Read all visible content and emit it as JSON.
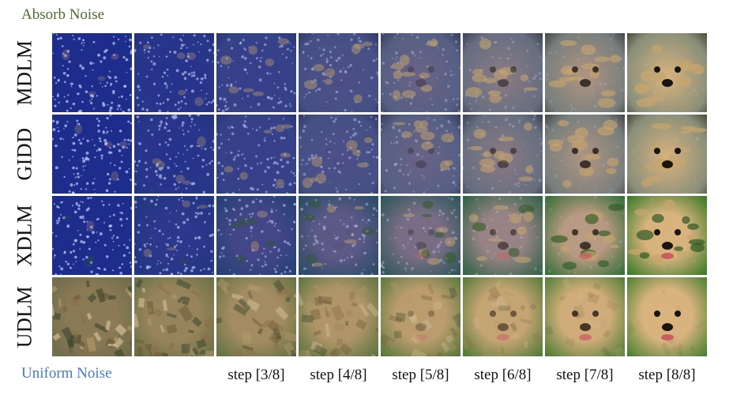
{
  "top_label": "Absorb Noise",
  "bottom_label": "Uniform Noise",
  "rows": [
    {
      "label": "MDLM",
      "kind": "absorb"
    },
    {
      "label": "GIDD",
      "kind": "absorb"
    },
    {
      "label": "XDLM",
      "kind": "mixed"
    },
    {
      "label": "UDLM",
      "kind": "uniform"
    }
  ],
  "step_labels": [
    "",
    "",
    "step [3/8]",
    "step [4/8]",
    "step [5/8]",
    "step [6/8]",
    "step [7/8]",
    "step [8/8]"
  ],
  "colors": {
    "absorb_mask": "#1e2c8c",
    "dog_fur": "#d9b37e",
    "grass": "#3f7d2c",
    "top_label": "#4e6b2e",
    "bottom_label": "#4a78c4"
  }
}
